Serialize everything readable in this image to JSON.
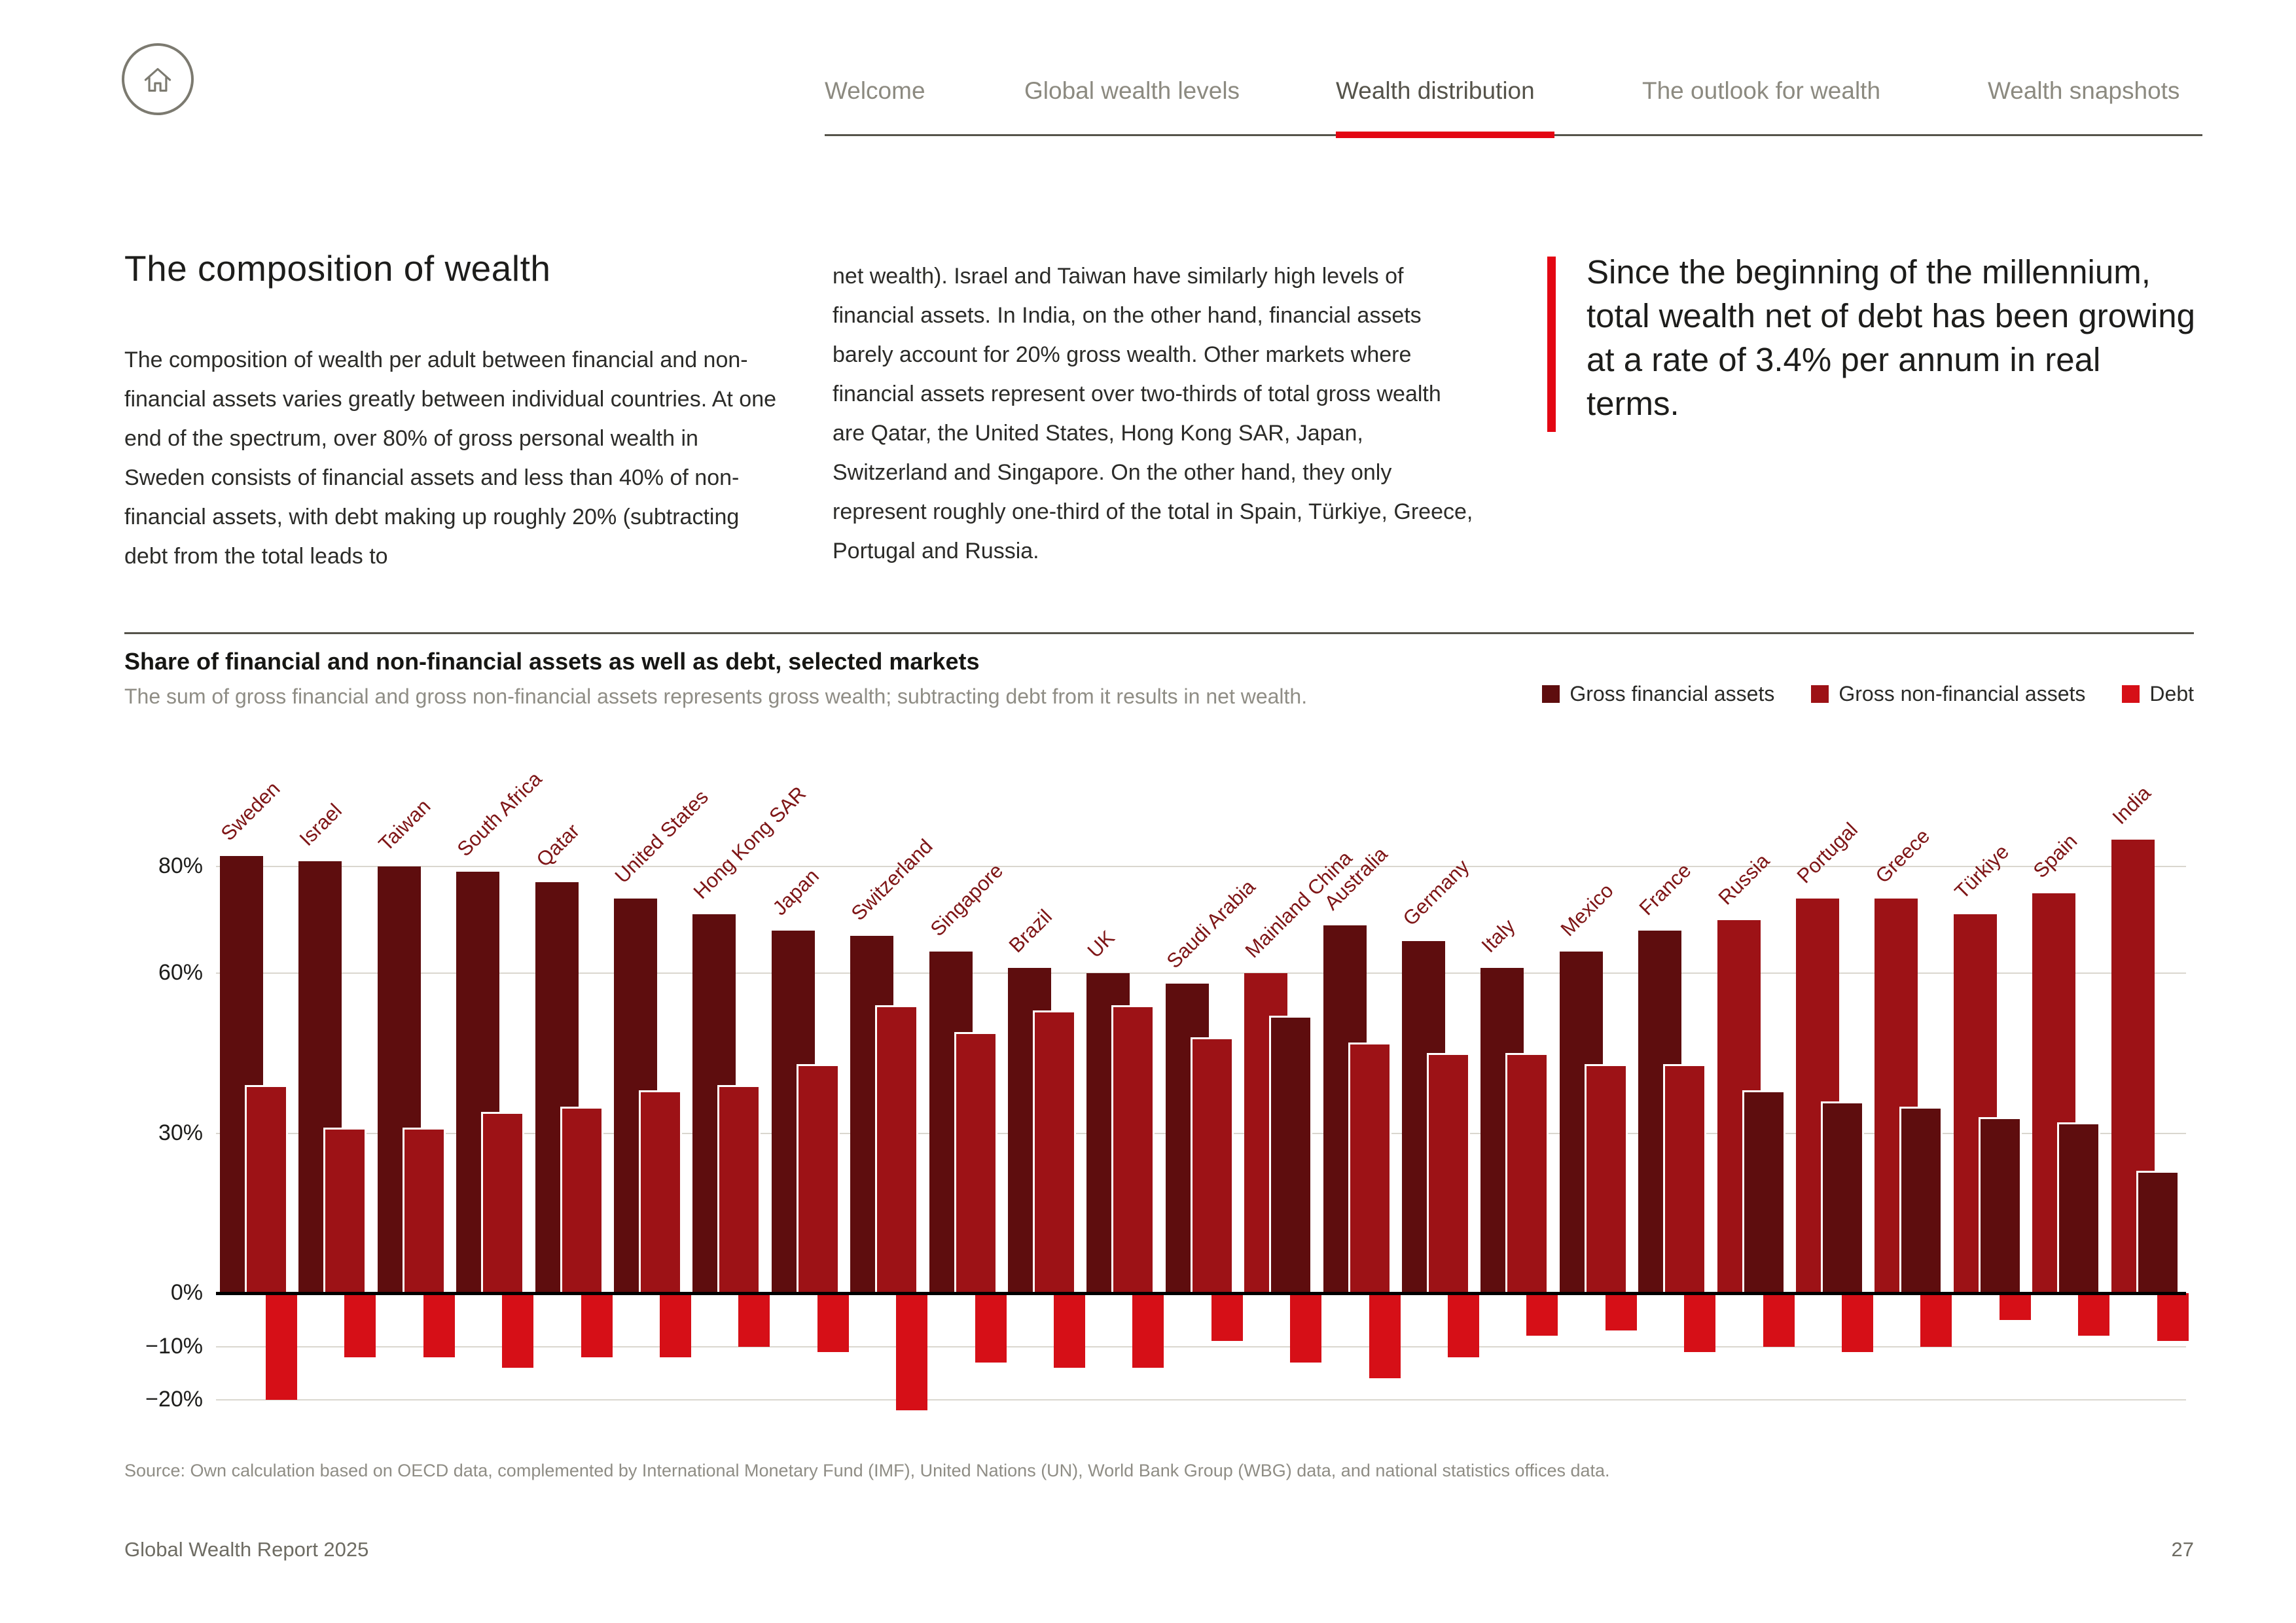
{
  "nav": {
    "home_icon": "home-icon",
    "tabs": [
      {
        "label": "Welcome",
        "active": false
      },
      {
        "label": "Global wealth levels",
        "active": false
      },
      {
        "label": "Wealth distribution",
        "active": true
      },
      {
        "label": "The outlook for wealth",
        "active": false
      },
      {
        "label": "Wealth snapshots",
        "active": false
      }
    ]
  },
  "article": {
    "heading": "The composition of wealth",
    "paragraph1": "The composition of wealth per adult between financial and non-financial assets varies greatly between individual countries. At one end of the spectrum, over 80% of gross personal wealth in Sweden consists of financial assets and less than 40% of non-financial assets, with debt making up roughly 20% (subtracting debt from the total leads to",
    "paragraph2": "net wealth). Israel and Taiwan have similarly high levels of financial assets. In India, on the other hand, financial assets barely account for 20% gross wealth. Other markets where financial assets represent over two-thirds of total gross wealth are Qatar, the United States, Hong Kong SAR, Japan, Switzerland and Singapore. On the other hand, they only represent roughly one-third of the total in Spain, Türkiye, Greece, Portugal and Russia.",
    "quote": "Since the beginning of the millennium, total wealth net of debt has been growing at a rate of 3.4% per annum in real terms."
  },
  "chart": {
    "title": "Share of financial and non-financial assets as well as debt, selected markets",
    "subtitle": "The sum of gross financial and gross non-financial assets represents gross wealth; subtracting debt from it results in net wealth.",
    "source": "Source: Own calculation based on OECD data, complemented by International Monetary Fund (IMF), United Nations (UN), World Bank Group (WBG) data, and national statistics offices data."
  },
  "chart_data": {
    "type": "bar",
    "title": "Share of financial and non-financial assets as well as debt, selected markets",
    "xlabel": "",
    "ylabel": "",
    "ylim": [
      -25,
      88
    ],
    "grid": true,
    "legend_position": "top-right",
    "unit": "%",
    "label_color": "#7e1516",
    "yticks": [
      {
        "v": 80,
        "label": "80%"
      },
      {
        "v": 60,
        "label": "60%"
      },
      {
        "v": 30,
        "label": "30%"
      },
      {
        "v": 0,
        "label": "0%"
      },
      {
        "v": -10,
        "label": "−10%"
      },
      {
        "v": -20,
        "label": "−20%"
      }
    ],
    "categories": [
      "Sweden",
      "Israel",
      "Taiwan",
      "South Africa",
      "Qatar",
      "United States",
      "Hong Kong SAR",
      "Japan",
      "Switzerland",
      "Singapore",
      "Brazil",
      "UK",
      "Saudi Arabia",
      "Mainland China",
      "Australia",
      "Germany",
      "Italy",
      "Mexico",
      "France",
      "Russia",
      "Portugal",
      "Greece",
      "Türkiye",
      "Spain",
      "India"
    ],
    "series": [
      {
        "id": "financial",
        "name": "Gross financial assets",
        "color": "#5e0d0e",
        "values": [
          82,
          81,
          80,
          79,
          77,
          74,
          71,
          68,
          67,
          64,
          61,
          60,
          58,
          52,
          69,
          66,
          61,
          64,
          68,
          38,
          36,
          35,
          33,
          32,
          23
        ]
      },
      {
        "id": "non_financial",
        "name": "Gross non-financial assets",
        "color": "#9d1216",
        "values": [
          39,
          31,
          31,
          34,
          35,
          38,
          39,
          43,
          54,
          49,
          53,
          54,
          48,
          60,
          47,
          45,
          45,
          43,
          43,
          70,
          74,
          74,
          71,
          75,
          85
        ]
      },
      {
        "id": "debt",
        "name": "Debt",
        "color": "#d60f17",
        "values": [
          -20,
          -12,
          -12,
          -14,
          -12,
          -12,
          -10,
          -11,
          -22,
          -13,
          -14,
          -14,
          -9,
          -13,
          -16,
          -12,
          -8,
          -7,
          -11,
          -10,
          -11,
          -10,
          -5,
          -8,
          -9
        ]
      }
    ]
  },
  "footer": {
    "report_name": "Global Wealth Report 2025",
    "page_number": "27"
  }
}
